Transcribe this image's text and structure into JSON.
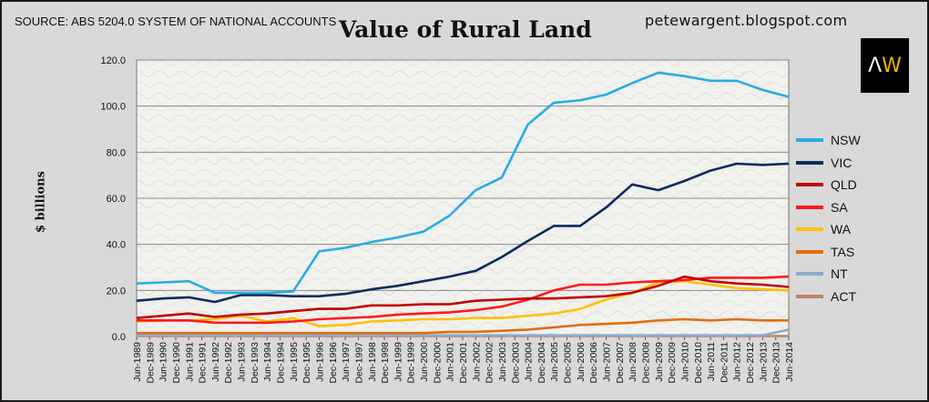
{
  "source": "SOURCE: ABS 5204.0 SYSTEM OF NATIONAL ACCOUNTS",
  "blog": "petewargent.blogspot.com",
  "logo": {
    "left": "Λ",
    "right": "W"
  },
  "chart_data": {
    "type": "line",
    "title": "Value of Rural Land",
    "ylabel": "$ billions",
    "xlabel": "",
    "ylim": [
      0,
      120
    ],
    "yticks": [
      "0.0",
      "20.0",
      "40.0",
      "60.0",
      "80.0",
      "100.0",
      "120.0"
    ],
    "grid": true,
    "legend_position": "right",
    "categories": [
      "Jun-1989",
      "Dec-1989",
      "Jun-1990",
      "Dec-1990",
      "Jun-1991",
      "Dec-1991",
      "Jun-1992",
      "Dec-1992",
      "Jun-1993",
      "Dec-1993",
      "Jun-1994",
      "Dec-1994",
      "Jun-1995",
      "Dec-1995",
      "Jun-1996",
      "Dec-1996",
      "Jun-1997",
      "Dec-1997",
      "Jun-1998",
      "Dec-1998",
      "Jun-1999",
      "Dec-1999",
      "Jun-2000",
      "Dec-2000",
      "Jun-2001",
      "Dec-2001",
      "Jun-2002",
      "Dec-2002",
      "Jun-2003",
      "Dec-2003",
      "Jun-2004",
      "Dec-2004",
      "Jun-2005",
      "Dec-2005",
      "Jun-2006",
      "Dec-2006",
      "Jun-2007",
      "Dec-2007",
      "Jun-2008",
      "Dec-2008",
      "Jun-2009",
      "Dec-2009",
      "Jun-2010",
      "Dec-2010",
      "Jun-2011",
      "Dec-2011",
      "Jun-2012",
      "Dec-2012",
      "Jun-2013",
      "Dec-2013",
      "Jun-2014"
    ],
    "series": [
      {
        "name": "NSW",
        "color": "#29abe2",
        "x": [
          "Jun-1989",
          "Jun-1990",
          "Jun-1991",
          "Jun-1992",
          "Jun-1993",
          "Jun-1994",
          "Jun-1995",
          "Jun-1996",
          "Jun-1997",
          "Jun-1998",
          "Jun-1999",
          "Jun-2000",
          "Jun-2001",
          "Jun-2002",
          "Jun-2003",
          "Jun-2004",
          "Jun-2005",
          "Jun-2006",
          "Jun-2007",
          "Jun-2008",
          "Jun-2009",
          "Jun-2010",
          "Jun-2011",
          "Jun-2012",
          "Jun-2013",
          "Jun-2014"
        ],
        "values": [
          23,
          23.5,
          24,
          19,
          19,
          19,
          19.5,
          37,
          38.5,
          41,
          43,
          45.5,
          52.5,
          63.5,
          69,
          92,
          101.5,
          102.5,
          105,
          110,
          114.5,
          113,
          111,
          111,
          107,
          104
        ]
      },
      {
        "name": "VIC",
        "color": "#0d2a5e",
        "x": [
          "Jun-1989",
          "Jun-1990",
          "Jun-1991",
          "Jun-1992",
          "Jun-1993",
          "Jun-1994",
          "Jun-1995",
          "Jun-1996",
          "Jun-1997",
          "Jun-1998",
          "Jun-1999",
          "Jun-2000",
          "Jun-2001",
          "Jun-2002",
          "Jun-2003",
          "Jun-2004",
          "Jun-2005",
          "Jun-2006",
          "Jun-2007",
          "Jun-2008",
          "Jun-2009",
          "Jun-2010",
          "Jun-2011",
          "Jun-2012",
          "Jun-2013",
          "Jun-2014"
        ],
        "values": [
          15.5,
          16.5,
          17,
          15,
          18,
          18,
          17.5,
          17.5,
          18.5,
          20.5,
          22,
          24,
          26,
          28.5,
          34.5,
          41.5,
          48,
          48,
          56,
          66,
          63.5,
          67.5,
          72,
          75,
          74.5,
          75
        ]
      },
      {
        "name": "QLD",
        "color": "#c00000",
        "x": [
          "Jun-1989",
          "Jun-1990",
          "Jun-1991",
          "Jun-1992",
          "Jun-1993",
          "Jun-1994",
          "Jun-1995",
          "Jun-1996",
          "Jun-1997",
          "Jun-1998",
          "Jun-1999",
          "Jun-2000",
          "Jun-2001",
          "Jun-2002",
          "Jun-2003",
          "Jun-2004",
          "Jun-2005",
          "Jun-2006",
          "Jun-2007",
          "Jun-2008",
          "Jun-2009",
          "Jun-2010",
          "Jun-2011",
          "Jun-2012",
          "Jun-2013",
          "Jun-2014"
        ],
        "values": [
          8,
          9,
          10,
          8.5,
          9.5,
          10,
          11,
          12,
          12,
          13.5,
          13.5,
          14,
          14,
          15.5,
          16,
          16.5,
          16.5,
          17,
          17.5,
          19,
          22,
          26,
          24,
          23,
          22.5,
          21.5
        ]
      },
      {
        "name": "SA",
        "color": "#ff1a1a",
        "x": [
          "Jun-1989",
          "Jun-1990",
          "Jun-1991",
          "Jun-1992",
          "Jun-1993",
          "Jun-1994",
          "Jun-1995",
          "Jun-1996",
          "Jun-1997",
          "Jun-1998",
          "Jun-1999",
          "Jun-2000",
          "Jun-2001",
          "Jun-2002",
          "Jun-2003",
          "Jun-2004",
          "Jun-2005",
          "Jun-2006",
          "Jun-2007",
          "Jun-2008",
          "Jun-2009",
          "Jun-2010",
          "Jun-2011",
          "Jun-2012",
          "Jun-2013",
          "Jun-2014"
        ],
        "values": [
          7,
          7,
          7,
          6,
          6,
          6,
          6.5,
          7.5,
          8,
          8.5,
          9.5,
          10,
          10.5,
          11.5,
          13,
          16,
          20,
          22.5,
          22.5,
          23.5,
          24,
          24.5,
          25.5,
          25.5,
          25.5,
          26
        ]
      },
      {
        "name": "WA",
        "color": "#ffc000",
        "x": [
          "Jun-1989",
          "Jun-1990",
          "Jun-1991",
          "Jun-1992",
          "Jun-1993",
          "Jun-1994",
          "Jun-1995",
          "Jun-1996",
          "Jun-1997",
          "Jun-1998",
          "Jun-1999",
          "Jun-2000",
          "Jun-2001",
          "Jun-2002",
          "Jun-2003",
          "Jun-2004",
          "Jun-2005",
          "Jun-2006",
          "Jun-2007",
          "Jun-2008",
          "Jun-2009",
          "Jun-2010",
          "Jun-2011",
          "Jun-2012",
          "Jun-2013",
          "Jun-2014"
        ],
        "values": [
          6.5,
          7,
          7,
          7.5,
          9,
          6.5,
          8,
          4.5,
          5,
          6.5,
          7,
          7.5,
          7.5,
          8,
          8,
          9,
          10,
          12,
          16,
          19,
          23.5,
          24,
          22.5,
          21,
          20.5,
          20
        ]
      },
      {
        "name": "TAS",
        "color": "#e36c0a",
        "x": [
          "Jun-1989",
          "Jun-1990",
          "Jun-1991",
          "Jun-1992",
          "Jun-1993",
          "Jun-1994",
          "Jun-1995",
          "Jun-1996",
          "Jun-1997",
          "Jun-1998",
          "Jun-1999",
          "Jun-2000",
          "Jun-2001",
          "Jun-2002",
          "Jun-2003",
          "Jun-2004",
          "Jun-2005",
          "Jun-2006",
          "Jun-2007",
          "Jun-2008",
          "Jun-2009",
          "Jun-2010",
          "Jun-2011",
          "Jun-2012",
          "Jun-2013",
          "Jun-2014"
        ],
        "values": [
          1.5,
          1.5,
          1.5,
          1.5,
          1.5,
          1.5,
          1.5,
          1.5,
          1.5,
          1.5,
          1.5,
          1.5,
          2,
          2,
          2.5,
          3,
          4,
          5,
          5.5,
          6,
          7,
          7.5,
          7,
          7.5,
          7,
          7
        ]
      },
      {
        "name": "NT",
        "color": "#8ea9c9",
        "x": [
          "Jun-1989",
          "Jun-1990",
          "Jun-1991",
          "Jun-1992",
          "Jun-1993",
          "Jun-1994",
          "Jun-1995",
          "Jun-1996",
          "Jun-1997",
          "Jun-1998",
          "Jun-1999",
          "Jun-2000",
          "Jun-2001",
          "Jun-2002",
          "Jun-2003",
          "Jun-2004",
          "Jun-2005",
          "Jun-2006",
          "Jun-2007",
          "Jun-2008",
          "Jun-2009",
          "Jun-2010",
          "Jun-2011",
          "Jun-2012",
          "Jun-2013",
          "Jun-2014"
        ],
        "values": [
          0.5,
          0.5,
          0.5,
          0.5,
          0.5,
          0.5,
          0.5,
          0.5,
          0.5,
          0.5,
          0.5,
          0.5,
          0.5,
          0.5,
          0.5,
          0.5,
          0.5,
          0.5,
          0.5,
          0.5,
          0.5,
          0.5,
          0.5,
          0.5,
          0.5,
          3
        ]
      },
      {
        "name": "ACT",
        "color": "#c0806a",
        "x": [
          "Jun-1989",
          "Jun-1990",
          "Jun-1991",
          "Jun-1992",
          "Jun-1993",
          "Jun-1994",
          "Jun-1995",
          "Jun-1996",
          "Jun-1997",
          "Jun-1998",
          "Jun-1999",
          "Jun-2000",
          "Jun-2001",
          "Jun-2002",
          "Jun-2003",
          "Jun-2004",
          "Jun-2005",
          "Jun-2006",
          "Jun-2007",
          "Jun-2008",
          "Jun-2009",
          "Jun-2010",
          "Jun-2011",
          "Jun-2012",
          "Jun-2013",
          "Jun-2014"
        ],
        "values": [
          0.2,
          0.2,
          0.2,
          0.2,
          0.2,
          0.2,
          0.2,
          0.2,
          0.2,
          0.2,
          0.2,
          0.2,
          0.2,
          0.2,
          0.2,
          0.2,
          0.2,
          0.2,
          0.2,
          0.2,
          0.2,
          0.2,
          0.2,
          0.2,
          0.2,
          0.2
        ]
      }
    ]
  }
}
